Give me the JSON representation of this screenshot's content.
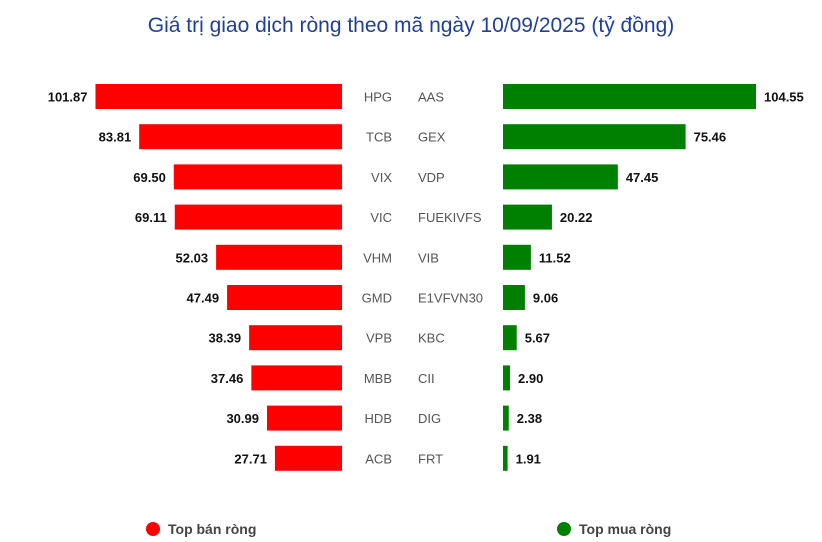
{
  "title": "Giá trị giao dịch ròng theo mã ngày 10/09/2025 (tỷ đồng)",
  "colors": {
    "sell": "#ff0000",
    "buy": "#008000",
    "title": "#1f3f9f",
    "ticker": "#555555",
    "value": "#111111"
  },
  "legend": {
    "sell_label": "Top bán ròng",
    "buy_label": "Top mua ròng"
  },
  "chart_data": {
    "type": "bar",
    "title": "Giá trị giao dịch ròng theo mã ngày 10/09/2025 (tỷ đồng)",
    "series": [
      {
        "name": "Top bán ròng",
        "categories": [
          "HPG",
          "TCB",
          "VIX",
          "VIC",
          "VHM",
          "GMD",
          "VPB",
          "MBB",
          "HDB",
          "ACB"
        ],
        "values": [
          101.87,
          83.81,
          69.5,
          69.11,
          52.03,
          47.49,
          38.39,
          37.46,
          30.99,
          27.71
        ]
      },
      {
        "name": "Top mua ròng",
        "categories": [
          "AAS",
          "GEX",
          "VDP",
          "FUEKIVFS",
          "VIB",
          "E1VFVN30",
          "KBC",
          "CII",
          "DIG",
          "FRT"
        ],
        "values": [
          104.55,
          75.46,
          47.45,
          20.22,
          11.52,
          9.06,
          5.67,
          2.9,
          2.38,
          1.91
        ]
      }
    ]
  }
}
